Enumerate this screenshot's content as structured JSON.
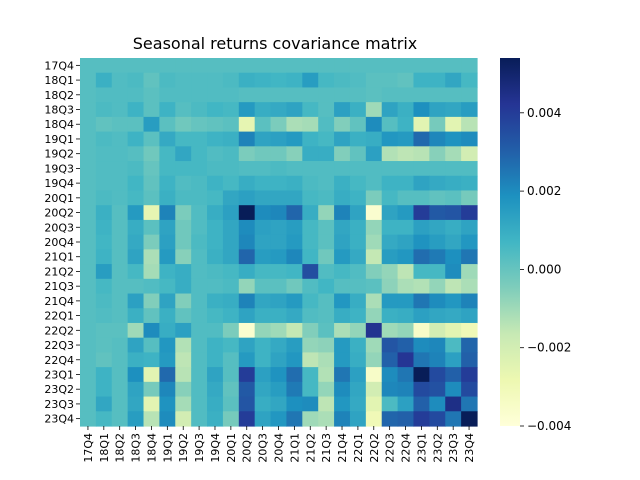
{
  "chart_data": {
    "type": "heatmap",
    "title": "Seasonal returns covariance matrix",
    "xlabel": "",
    "ylabel": "",
    "categories": [
      "17Q4",
      "18Q1",
      "18Q2",
      "18Q3",
      "18Q4",
      "19Q1",
      "19Q2",
      "19Q3",
      "19Q4",
      "20Q1",
      "20Q2",
      "20Q3",
      "20Q4",
      "21Q1",
      "21Q2",
      "21Q3",
      "21Q4",
      "22Q1",
      "22Q2",
      "22Q3",
      "22Q4",
      "23Q1",
      "23Q2",
      "23Q3",
      "23Q4"
    ],
    "colorbar": {
      "min": -0.004,
      "max": 0.0054,
      "ticks": [
        -0.004,
        -0.002,
        0.0,
        0.002,
        0.004
      ],
      "tick_labels": [
        "−0.004",
        "−0.002",
        "0.000",
        "0.002",
        "0.004"
      ],
      "colormap": "YlGnBu"
    },
    "values": [
      [
        0.0003,
        0.0003,
        0.0003,
        0.0003,
        0.0003,
        0.0003,
        0.0003,
        0.0003,
        0.0003,
        0.0003,
        0.0003,
        0.0003,
        0.0003,
        0.0003,
        0.0003,
        0.0003,
        0.0003,
        0.0003,
        0.0003,
        0.0003,
        0.0003,
        0.0003,
        0.0003,
        0.0003,
        0.0003
      ],
      [
        0.0003,
        0.0009,
        0.0004,
        0.0005,
        0.0001,
        0.0005,
        0.0004,
        0.0004,
        0.0004,
        0.0005,
        0.0009,
        0.0008,
        0.0007,
        0.0008,
        0.0015,
        0.0006,
        0.0005,
        0.0004,
        0.0002,
        0.0002,
        0.0001,
        0.0008,
        0.0008,
        0.0012,
        0.0006
      ],
      [
        0.0003,
        0.0004,
        0.0004,
        0.0004,
        0.0002,
        0.0004,
        0.0004,
        0.0004,
        0.0004,
        0.0004,
        0.0003,
        0.0003,
        0.0003,
        0.0003,
        0.0003,
        0.0003,
        0.0003,
        0.0003,
        0.0002,
        0.0003,
        0.0003,
        0.0003,
        0.0003,
        0.0003,
        0.0003
      ],
      [
        0.0003,
        0.0005,
        0.0004,
        0.0008,
        0.0002,
        0.0008,
        0.0003,
        0.0005,
        0.0007,
        0.0006,
        0.0016,
        0.001,
        0.0011,
        0.0013,
        0.0006,
        0.0003,
        0.0014,
        0.0009,
        -0.001,
        0.0013,
        0.0009,
        0.0019,
        0.0013,
        0.0012,
        0.0015
      ],
      [
        0.0003,
        0.0001,
        0.0002,
        0.0002,
        0.0015,
        0.0002,
        -0.0002,
        0.0,
        0.0001,
        0.0002,
        -0.0026,
        0.0002,
        -0.0004,
        -0.0012,
        -0.0011,
        0.0004,
        -0.0005,
        0.0001,
        0.002,
        0.0003,
        0.0008,
        -0.0025,
        -0.0003,
        -0.0025,
        -0.0014
      ],
      [
        0.0003,
        0.0005,
        0.0004,
        0.0008,
        0.0002,
        0.0011,
        0.0006,
        0.0006,
        0.0008,
        0.0009,
        0.0022,
        0.0013,
        0.0014,
        0.0016,
        0.0008,
        0.0006,
        0.0013,
        0.0009,
        0.001,
        0.0017,
        0.0016,
        0.0028,
        0.0021,
        0.0018,
        0.002
      ],
      [
        0.0003,
        0.0004,
        0.0004,
        0.0003,
        -0.0002,
        0.0006,
        0.0012,
        0.0006,
        0.0004,
        0.0005,
        -0.0004,
        -0.0002,
        -0.0002,
        -0.0006,
        0.001,
        0.001,
        -0.0005,
        0.0001,
        0.0014,
        -0.0013,
        -0.0015,
        -0.0014,
        -0.0006,
        -0.0011,
        -0.002
      ],
      [
        0.0003,
        0.0004,
        0.0004,
        0.0005,
        0.0,
        0.0006,
        0.0006,
        0.0006,
        0.0005,
        0.0005,
        0.0004,
        0.0004,
        0.0005,
        0.0004,
        0.0004,
        0.0004,
        0.0004,
        0.0004,
        0.0004,
        0.0004,
        0.0004,
        0.0004,
        0.0004,
        0.0004,
        0.0004
      ],
      [
        0.0003,
        0.0004,
        0.0004,
        0.0007,
        0.0001,
        0.0008,
        0.0004,
        0.0005,
        0.0008,
        0.0006,
        0.001,
        0.0008,
        0.0008,
        0.0009,
        0.0005,
        0.0004,
        0.0009,
        0.0006,
        0.0004,
        0.0008,
        0.0008,
        0.0013,
        0.0011,
        0.001,
        0.0009
      ],
      [
        0.0003,
        0.0005,
        0.0004,
        0.0006,
        0.0002,
        0.0009,
        0.0005,
        0.0005,
        0.0006,
        0.0012,
        0.0014,
        0.0012,
        0.0012,
        0.0012,
        0.0006,
        0.0005,
        0.001,
        0.0008,
        -0.0004,
        0.0006,
        0.0003,
        0.0003,
        0.0001,
        0.0002,
        -0.0003
      ],
      [
        0.0003,
        0.0009,
        0.0003,
        0.0016,
        -0.0026,
        0.0022,
        -0.0004,
        0.0004,
        0.001,
        0.0014,
        0.0054,
        0.002,
        0.0021,
        0.0029,
        0.001,
        -0.0008,
        0.0022,
        0.0013,
        -0.0037,
        0.0013,
        0.0016,
        0.004,
        0.0032,
        0.0033,
        0.004
      ],
      [
        0.0003,
        0.0008,
        0.0003,
        0.001,
        0.0002,
        0.0013,
        -0.0002,
        0.0004,
        0.0008,
        0.0012,
        0.002,
        0.0014,
        0.0013,
        0.0015,
        0.0006,
        0.0002,
        0.0012,
        0.0009,
        -0.0008,
        0.0008,
        0.0008,
        0.0014,
        0.0012,
        0.001,
        0.0013
      ],
      [
        0.0003,
        0.0007,
        0.0003,
        0.0011,
        -0.0004,
        0.0014,
        -0.0002,
        0.0005,
        0.0008,
        0.0012,
        0.0021,
        0.0013,
        0.0013,
        0.0016,
        0.0006,
        0.0002,
        0.0013,
        0.0009,
        -0.001,
        0.0011,
        0.0013,
        0.0018,
        0.0015,
        0.0012,
        0.0017
      ],
      [
        0.0003,
        0.0008,
        0.0003,
        0.0013,
        -0.0012,
        0.0016,
        -0.0006,
        0.0004,
        0.0009,
        0.0012,
        0.0029,
        0.0015,
        0.0016,
        0.0021,
        0.0007,
        -0.0002,
        0.0016,
        0.0011,
        -0.0016,
        0.0015,
        0.0017,
        0.0027,
        0.0024,
        0.0019,
        0.0025
      ],
      [
        0.0003,
        0.0015,
        0.0003,
        0.0006,
        -0.0011,
        0.0008,
        0.001,
        0.0004,
        0.0005,
        0.0006,
        0.001,
        0.0006,
        0.0006,
        0.0007,
        0.0035,
        0.0004,
        0.0006,
        0.0004,
        -0.0005,
        -0.0008,
        -0.0015,
        0.0006,
        0.0006,
        0.002,
        -0.001
      ],
      [
        0.0003,
        0.0006,
        0.0003,
        0.0003,
        0.0004,
        0.0006,
        0.001,
        0.0004,
        0.0004,
        0.0005,
        -0.0008,
        0.0002,
        0.0002,
        -0.0002,
        0.0004,
        0.0007,
        0.0003,
        0.0003,
        0.0002,
        -0.0007,
        -0.0012,
        -0.0013,
        -0.0008,
        -0.0015,
        -0.0012
      ],
      [
        0.0003,
        0.0005,
        0.0003,
        0.0014,
        -0.0005,
        0.0013,
        -0.0005,
        0.0004,
        0.0009,
        0.001,
        0.0022,
        0.0012,
        0.0013,
        0.0016,
        0.0006,
        0.0003,
        0.0017,
        0.001,
        -0.0012,
        0.0016,
        0.0016,
        0.0025,
        0.002,
        0.0017,
        0.0022
      ],
      [
        0.0003,
        0.0004,
        0.0003,
        0.0009,
        0.0001,
        0.0009,
        0.0001,
        0.0004,
        0.0006,
        0.0008,
        0.0013,
        0.0009,
        0.0009,
        0.0011,
        0.0004,
        0.0003,
        0.001,
        0.0008,
        -0.0008,
        0.0009,
        0.001,
        0.0014,
        0.0012,
        0.0011,
        0.0013
      ],
      [
        0.0003,
        0.0002,
        0.0002,
        -0.001,
        0.002,
        0.001,
        0.0014,
        0.0004,
        0.0004,
        -0.0004,
        -0.0037,
        -0.0008,
        -0.001,
        -0.0016,
        -0.0005,
        0.0002,
        -0.0012,
        -0.0008,
        0.0043,
        -0.001,
        -0.0008,
        -0.0035,
        -0.002,
        -0.0025,
        -0.003
      ],
      [
        0.0003,
        0.0002,
        0.0003,
        0.0013,
        0.0003,
        0.0017,
        -0.0013,
        0.0004,
        0.0008,
        0.0006,
        0.0013,
        0.0008,
        0.0011,
        0.0015,
        -0.0008,
        -0.0007,
        0.0016,
        0.0009,
        -0.001,
        0.0033,
        0.003,
        0.002,
        0.0021,
        0.0005,
        0.0029
      ],
      [
        0.0003,
        0.0001,
        0.0003,
        0.0009,
        0.0008,
        0.0016,
        -0.0015,
        0.0004,
        0.0008,
        0.0003,
        0.0016,
        0.0008,
        0.0013,
        0.0017,
        -0.0015,
        -0.0012,
        0.0016,
        0.001,
        -0.0008,
        0.003,
        0.0042,
        0.0025,
        0.0022,
        0.0014,
        0.003
      ],
      [
        0.0003,
        0.0008,
        0.0003,
        0.0019,
        -0.0025,
        0.0028,
        -0.0014,
        0.0004,
        0.0013,
        0.0003,
        0.004,
        0.0014,
        0.0018,
        0.0027,
        0.0006,
        -0.0013,
        0.0025,
        0.0014,
        -0.0035,
        0.002,
        0.0025,
        0.0054,
        0.0036,
        0.003,
        0.004
      ],
      [
        0.0003,
        0.0008,
        0.0003,
        0.0013,
        -0.0003,
        0.0021,
        -0.0006,
        0.0004,
        0.0011,
        0.0001,
        0.0032,
        0.0012,
        0.0015,
        0.0024,
        0.0006,
        -0.0008,
        0.002,
        0.0012,
        -0.002,
        0.0021,
        0.0022,
        0.0036,
        0.0034,
        0.002,
        0.0036
      ],
      [
        0.0003,
        0.0012,
        0.0003,
        0.0012,
        -0.0025,
        0.0018,
        -0.0011,
        0.0004,
        0.001,
        0.0002,
        0.0033,
        0.001,
        0.0012,
        0.0019,
        0.002,
        -0.0015,
        0.0017,
        0.0011,
        -0.0025,
        0.0005,
        0.0014,
        0.003,
        0.002,
        0.0045,
        0.0025
      ],
      [
        0.0003,
        0.0006,
        0.0003,
        0.0015,
        -0.0014,
        0.002,
        -0.002,
        0.0004,
        0.0009,
        -0.0003,
        0.004,
        0.0013,
        0.0017,
        0.0025,
        -0.001,
        -0.0012,
        0.0022,
        0.0013,
        -0.003,
        0.0029,
        0.003,
        0.004,
        0.0036,
        0.0025,
        0.0054
      ]
    ]
  }
}
